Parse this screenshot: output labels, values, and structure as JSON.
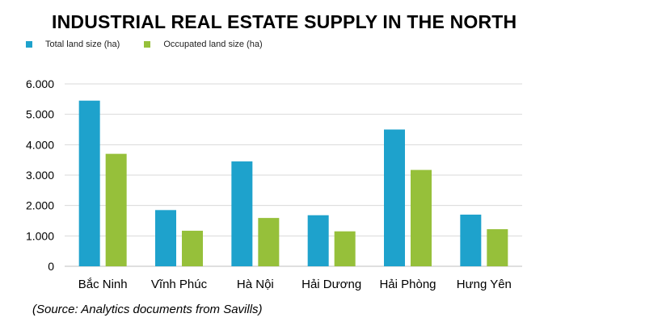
{
  "colors": {
    "total": "#1ea2cc",
    "occupied": "#96c03a",
    "grid": "#d9d9d9",
    "axis": "#bfbfbf"
  },
  "chart_data": {
    "type": "bar",
    "title": "INDUSTRIAL REAL ESTATE SUPPLY IN THE NORTH",
    "categories": [
      "Bắc Ninh",
      "Vĩnh Phúc",
      "Hà Nội",
      "Hải Dương",
      "Hải Phòng",
      "Hưng Yên"
    ],
    "series": [
      {
        "name": "Total land size (ha)",
        "values": [
          5450,
          1850,
          3450,
          1680,
          4500,
          1700
        ]
      },
      {
        "name": "Occupated land size (ha)",
        "values": [
          3700,
          1170,
          1590,
          1150,
          3170,
          1220
        ]
      }
    ],
    "ylim": [
      0,
      6000
    ],
    "yticks": [
      "0",
      "1.000",
      "2.000",
      "3.000",
      "4.000",
      "5.000",
      "6.000"
    ],
    "grid": true,
    "legend_position": "top-left"
  },
  "source": "(Source: Analytics documents from Savills)"
}
